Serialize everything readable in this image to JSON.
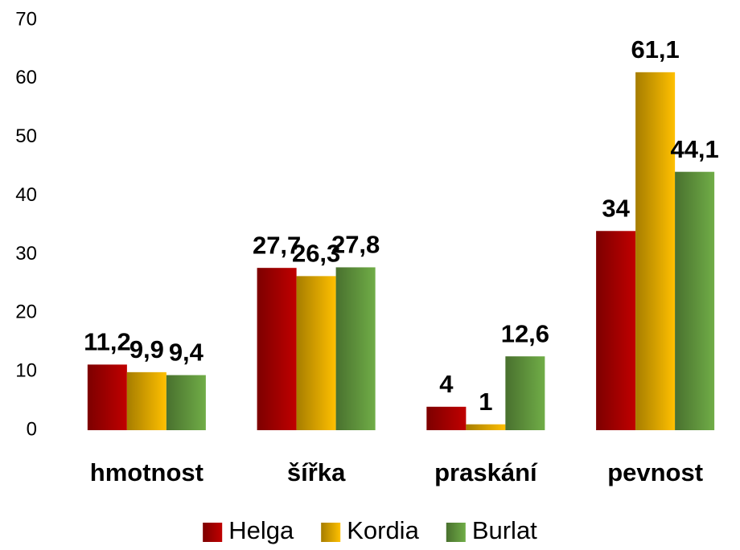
{
  "chart_data": {
    "type": "bar",
    "categories": [
      "hmotnost",
      "šířka",
      "praskání",
      "pevnost"
    ],
    "series": [
      {
        "name": "Helga",
        "color": "#c00000",
        "values": [
          11.2,
          27.7,
          4,
          34
        ],
        "value_labels": [
          "11,2",
          "27,7",
          "4",
          "34"
        ]
      },
      {
        "name": "Kordia",
        "color": "#ffc000",
        "values": [
          9.9,
          26.3,
          1,
          61.1
        ],
        "value_labels": [
          "9,9",
          "26,3",
          "1",
          "61,1"
        ]
      },
      {
        "name": "Burlat",
        "color": "#70ad47",
        "values": [
          9.4,
          27.8,
          12.6,
          44.1
        ],
        "value_labels": [
          "9,4",
          "27,8",
          "12,6",
          "44,1"
        ]
      }
    ],
    "ylim": [
      0,
      70
    ],
    "yticks": [
      0,
      10,
      20,
      30,
      40,
      50,
      60,
      70
    ],
    "grid": false,
    "legend": "bottom"
  }
}
